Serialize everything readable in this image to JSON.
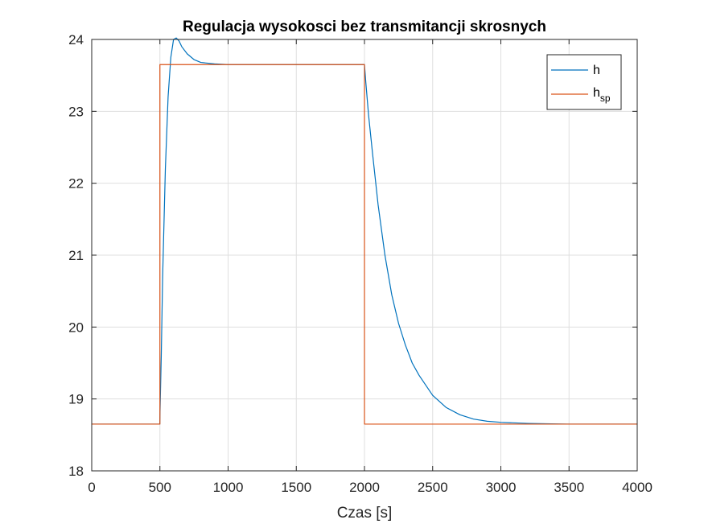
{
  "chart_data": {
    "type": "line",
    "title": "Regulacja wysokosci bez transmitancji skrosnych",
    "xlabel": "Czas [s]",
    "ylabel": "",
    "xlim": [
      0,
      4000
    ],
    "ylim": [
      18,
      24
    ],
    "xticks": [
      0,
      500,
      1000,
      1500,
      2000,
      2500,
      3000,
      3500,
      4000
    ],
    "yticks": [
      18,
      19,
      20,
      21,
      22,
      23,
      24
    ],
    "grid": true,
    "legend_position": "top-right",
    "series": [
      {
        "name": "h",
        "color": "#0072BD",
        "x": [
          0,
          499,
          500,
          510,
          520,
          540,
          560,
          580,
          600,
          620,
          640,
          660,
          700,
          750,
          800,
          900,
          1000,
          1200,
          2000,
          2010,
          2030,
          2060,
          2100,
          2150,
          2200,
          2250,
          2300,
          2350,
          2400,
          2500,
          2600,
          2700,
          2800,
          2900,
          3000,
          3200,
          3500,
          4000
        ],
        "y": [
          18.65,
          18.65,
          18.75,
          19.6,
          20.7,
          22.2,
          23.2,
          23.75,
          24.0,
          24.02,
          23.98,
          23.9,
          23.8,
          23.72,
          23.68,
          23.66,
          23.65,
          23.65,
          23.65,
          23.4,
          22.95,
          22.4,
          21.7,
          21.0,
          20.45,
          20.05,
          19.75,
          19.5,
          19.33,
          19.05,
          18.88,
          18.78,
          18.72,
          18.69,
          18.675,
          18.66,
          18.65,
          18.65
        ]
      },
      {
        "name": "h",
        "name_sub": "sp",
        "color": "#D95319",
        "x": [
          0,
          500,
          500,
          2000,
          2000,
          4000
        ],
        "y": [
          18.65,
          18.65,
          23.65,
          23.65,
          18.65,
          18.65
        ]
      }
    ]
  }
}
